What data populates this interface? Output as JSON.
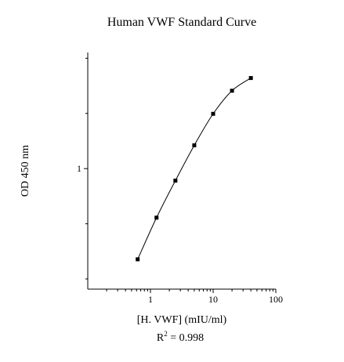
{
  "chart_data": {
    "type": "line",
    "title": "Human VWF Standard Curve",
    "xlabel": "[H. VWF] (mIU/ml)",
    "ylabel": "OD 450 nm",
    "annotation": {
      "r2_symbol": "R",
      "r2_exponent": "2",
      "r2_text": " = 0.998"
    },
    "x_scale": "log",
    "y_scale": "log",
    "xlim": [
      0.1,
      100
    ],
    "ylim": [
      0.22,
      4.3
    ],
    "x_ticks": [
      1,
      10,
      100
    ],
    "x_tick_labels": [
      "1",
      "10",
      "100"
    ],
    "y_ticks": [
      1
    ],
    "y_tick_labels": [
      "1"
    ],
    "grid": false,
    "legend": "none",
    "series": [
      {
        "x": [
          0.625,
          1.25,
          2.5,
          5,
          10,
          20,
          40
        ],
        "y": [
          0.32,
          0.54,
          0.86,
          1.34,
          1.99,
          2.66,
          3.12
        ]
      }
    ],
    "colors": {
      "line": "#000000",
      "marker": "#000000",
      "axis": "#000000"
    }
  }
}
